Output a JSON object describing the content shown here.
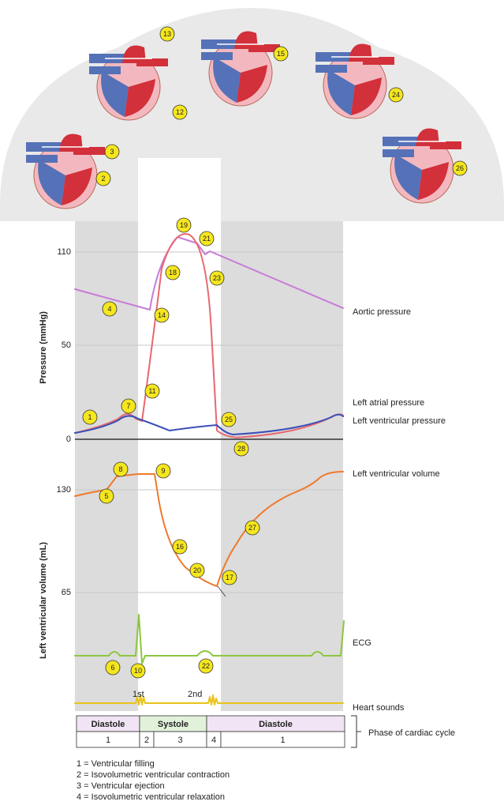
{
  "pressure_axis": {
    "label": "Pressure (mmHg)",
    "ticks": [
      "110",
      "50",
      "0"
    ]
  },
  "volume_axis": {
    "label": "Left ventricular volume (mL)",
    "ticks": [
      "130",
      "65"
    ]
  },
  "traces": {
    "aortic": "Aortic pressure",
    "atrial": "Left atrial pressure",
    "ventricular": "Left ventricular pressure",
    "volume": "Left ventricular volume",
    "ecg": "ECG",
    "sounds": "Heart sounds"
  },
  "sound_labels": [
    "1st",
    "2nd"
  ],
  "phase_table": {
    "caption": "Phase of cardiac cycle",
    "names": [
      "Diastole",
      "Systole",
      "Diastole"
    ],
    "numbers": [
      "1",
      "2",
      "3",
      "4",
      "1"
    ]
  },
  "legend": [
    "1 = Ventricular filling",
    "2 = Isovolumetric ventricular contraction",
    "3 = Ventricular ejection",
    "4 = Isovolumetric ventricular relaxation"
  ],
  "markers": [
    "1",
    "2",
    "3",
    "4",
    "5",
    "6",
    "7",
    "8",
    "9",
    "10",
    "11",
    "12",
    "13",
    "14",
    "15",
    "16",
    "17",
    "18",
    "19",
    "20",
    "21",
    "22",
    "23",
    "24",
    "25",
    "26",
    "27",
    "28"
  ]
}
